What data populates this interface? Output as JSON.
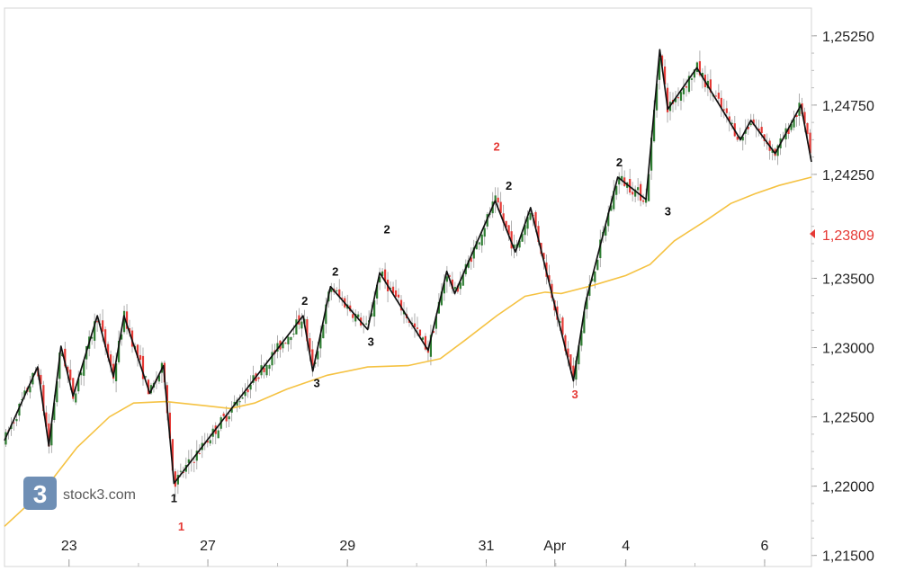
{
  "chart_data": {
    "type": "candlestick",
    "y_axis_ticks": [
      "1,25250",
      "1,24750",
      "1,24250",
      "1,23500",
      "1,23000",
      "1,22500",
      "1,22000",
      "1,21500"
    ],
    "y_axis_tick_values": [
      1.2525,
      1.2475,
      1.2425,
      1.235,
      1.23,
      1.225,
      1.22,
      1.215
    ],
    "x_axis_ticks": [
      "23",
      "27",
      "29",
      "31",
      "Apr",
      "4",
      "6"
    ],
    "ylim": [
      1.2142,
      1.2545
    ],
    "current_price_label": "1,23809",
    "current_price": 1.23809,
    "watermark": "stock3.com",
    "moving_average": [
      [
        0.0,
        1.2171
      ],
      [
        0.05,
        1.2198
      ],
      [
        0.09,
        1.2228
      ],
      [
        0.13,
        1.225
      ],
      [
        0.16,
        1.226
      ],
      [
        0.2,
        1.2261
      ],
      [
        0.25,
        1.2258
      ],
      [
        0.28,
        1.2256
      ],
      [
        0.31,
        1.226
      ],
      [
        0.35,
        1.227
      ],
      [
        0.4,
        1.228
      ],
      [
        0.45,
        1.2286
      ],
      [
        0.5,
        1.2287
      ],
      [
        0.54,
        1.2292
      ],
      [
        0.57,
        1.2305
      ],
      [
        0.61,
        1.2323
      ],
      [
        0.645,
        1.2337
      ],
      [
        0.67,
        1.234
      ],
      [
        0.69,
        1.2339
      ],
      [
        0.73,
        1.2345
      ],
      [
        0.77,
        1.2352
      ],
      [
        0.8,
        1.236
      ],
      [
        0.83,
        1.2377
      ],
      [
        0.87,
        1.2392
      ],
      [
        0.9,
        1.2404
      ],
      [
        0.93,
        1.2411
      ],
      [
        0.96,
        1.2417
      ],
      [
        1.0,
        1.2423
      ]
    ],
    "wave_line": [
      [
        0.0,
        1.2233
      ],
      [
        0.041,
        1.2286
      ],
      [
        0.055,
        1.2229
      ],
      [
        0.07,
        1.2301
      ],
      [
        0.085,
        1.2265
      ],
      [
        0.115,
        1.2323
      ],
      [
        0.135,
        1.2279
      ],
      [
        0.148,
        1.2323
      ],
      [
        0.18,
        1.2267
      ],
      [
        0.197,
        1.2287
      ],
      [
        0.21,
        1.2202
      ],
      [
        0.37,
        1.2323
      ],
      [
        0.382,
        1.2283
      ],
      [
        0.404,
        1.2344
      ],
      [
        0.45,
        1.2313
      ],
      [
        0.465,
        1.2354
      ],
      [
        0.525,
        1.2298
      ],
      [
        0.548,
        1.2355
      ],
      [
        0.558,
        1.2339
      ],
      [
        0.608,
        1.2406
      ],
      [
        0.633,
        1.2369
      ],
      [
        0.652,
        1.2401
      ],
      [
        0.705,
        1.2276
      ],
      [
        0.72,
        1.2332
      ],
      [
        0.76,
        1.2423
      ],
      [
        0.795,
        1.2407
      ],
      [
        0.812,
        1.2515
      ],
      [
        0.822,
        1.2472
      ],
      [
        0.858,
        1.2502
      ],
      [
        0.912,
        1.245
      ],
      [
        0.925,
        1.2464
      ],
      [
        0.955,
        1.244
      ],
      [
        0.987,
        1.2475
      ],
      [
        1.0,
        1.2434
      ]
    ],
    "wave_labels": [
      {
        "text": "1",
        "color": "#111111",
        "x": 0.21,
        "y": 1.22,
        "pos": "below"
      },
      {
        "text": "1",
        "color": "#e53935",
        "x": 0.219,
        "y": 1.219,
        "pos": "below2"
      },
      {
        "text": "2",
        "color": "#111111",
        "x": 0.372,
        "y": 1.2323,
        "pos": "above"
      },
      {
        "text": "3",
        "color": "#111111",
        "x": 0.387,
        "y": 1.2283,
        "pos": "below"
      },
      {
        "text": "2",
        "color": "#111111",
        "x": 0.41,
        "y": 1.2344,
        "pos": "above"
      },
      {
        "text": "3",
        "color": "#111111",
        "x": 0.454,
        "y": 1.2313,
        "pos": "below"
      },
      {
        "text": "2",
        "color": "#111111",
        "x": 0.474,
        "y": 1.2354,
        "pos": "above2"
      },
      {
        "text": "2",
        "color": "#e53935",
        "x": 0.61,
        "y": 1.2415,
        "pos": "above3"
      },
      {
        "text": "2",
        "color": "#111111",
        "x": 0.625,
        "y": 1.2406,
        "pos": "above"
      },
      {
        "text": "3",
        "color": "#e53935",
        "x": 0.707,
        "y": 1.2275,
        "pos": "below"
      },
      {
        "text": "2",
        "color": "#111111",
        "x": 0.762,
        "y": 1.2423,
        "pos": "above"
      },
      {
        "text": "3",
        "color": "#111111",
        "x": 0.822,
        "y": 1.2407,
        "pos": "below"
      }
    ],
    "colors": {
      "up": "#2e7d32",
      "down": "#e53935",
      "wick": "#8a8a8a",
      "moving_average": "#f5c242",
      "wave_line": "#111111",
      "price_tag": "#e53935",
      "watermark_bg": "#6f8fb5"
    }
  }
}
